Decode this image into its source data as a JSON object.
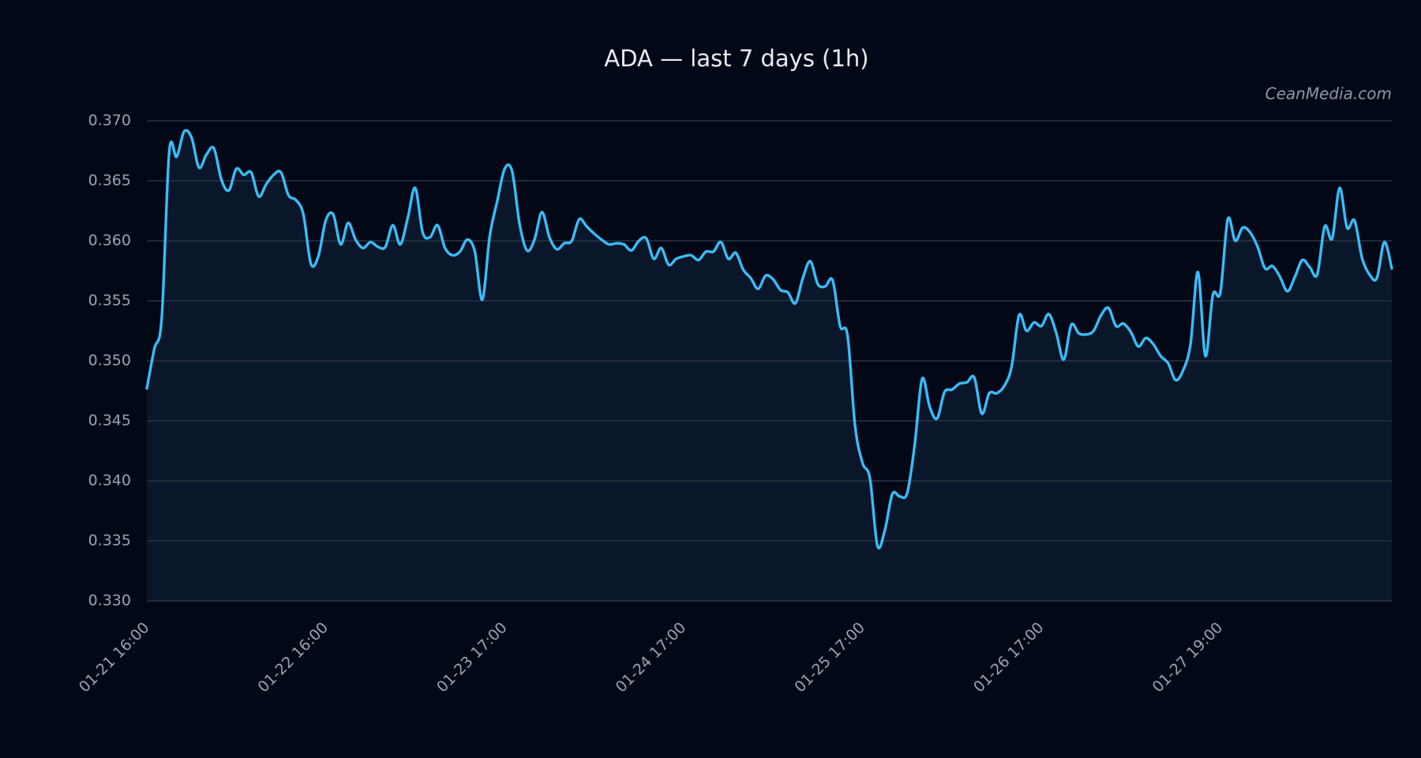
{
  "chart_data": {
    "type": "line",
    "title": "ADA — last 7 days (1h)",
    "annotation": "CeanMedia.com",
    "color": "#38bdf8",
    "fill_color": "#0a1629",
    "grid": true,
    "categories": [
      "01-21 16:00",
      null,
      null,
      null,
      null,
      null,
      null,
      null,
      null,
      null,
      null,
      null,
      null,
      null,
      null,
      null,
      null,
      null,
      null,
      null,
      null,
      null,
      null,
      null,
      "01-22 16:00",
      null,
      null,
      null,
      null,
      null,
      null,
      null,
      null,
      null,
      null,
      null,
      null,
      null,
      null,
      null,
      null,
      null,
      null,
      null,
      null,
      null,
      null,
      null,
      "01-23 17:00",
      null,
      null,
      null,
      null,
      null,
      null,
      null,
      null,
      null,
      null,
      null,
      null,
      null,
      null,
      null,
      null,
      null,
      null,
      null,
      null,
      null,
      null,
      null,
      "01-24 17:00",
      null,
      null,
      null,
      null,
      null,
      null,
      null,
      null,
      null,
      null,
      null,
      null,
      null,
      null,
      null,
      null,
      null,
      null,
      null,
      null,
      null,
      null,
      null,
      "01-25 17:00",
      null,
      null,
      null,
      null,
      null,
      null,
      null,
      null,
      null,
      null,
      null,
      null,
      null,
      null,
      null,
      null,
      null,
      null,
      null,
      null,
      null,
      null,
      null,
      "01-26 17:00",
      null,
      null,
      null,
      null,
      null,
      null,
      null,
      null,
      null,
      null,
      null,
      null,
      null,
      null,
      null,
      null,
      null,
      null,
      null,
      null,
      null,
      null,
      null,
      "01-27 19:00",
      null,
      null,
      null,
      null,
      null,
      null,
      null,
      null,
      null,
      null,
      null,
      null,
      null,
      null,
      null,
      null,
      null,
      null,
      null,
      null,
      null,
      null,
      null
    ],
    "values": [
      0.3477,
      0.351,
      0.3536,
      0.3674,
      0.367,
      0.3691,
      0.3686,
      0.3661,
      0.3672,
      0.3677,
      0.3651,
      0.3642,
      0.366,
      0.3655,
      0.3657,
      0.3637,
      0.3647,
      0.3655,
      0.3657,
      0.3638,
      0.3634,
      0.3622,
      0.3581,
      0.3587,
      0.3617,
      0.3622,
      0.3597,
      0.3615,
      0.3601,
      0.3594,
      0.3599,
      0.3595,
      0.3595,
      0.3613,
      0.3597,
      0.3619,
      0.3644,
      0.3607,
      0.3603,
      0.3613,
      0.3594,
      0.3588,
      0.3591,
      0.3601,
      0.3591,
      0.3551,
      0.3604,
      0.3633,
      0.366,
      0.3658,
      0.3614,
      0.3592,
      0.3601,
      0.3624,
      0.3603,
      0.3593,
      0.3598,
      0.36,
      0.3618,
      0.3612,
      0.3606,
      0.3601,
      0.3597,
      0.3598,
      0.3597,
      0.3592,
      0.36,
      0.3602,
      0.3585,
      0.3594,
      0.358,
      0.3585,
      0.3587,
      0.3588,
      0.3584,
      0.3591,
      0.3591,
      0.3599,
      0.3585,
      0.359,
      0.3576,
      0.3569,
      0.356,
      0.3571,
      0.3568,
      0.3559,
      0.3557,
      0.3548,
      0.3569,
      0.3583,
      0.3564,
      0.3562,
      0.3567,
      0.3529,
      0.3521,
      0.3446,
      0.3415,
      0.3402,
      0.3346,
      0.3359,
      0.3389,
      0.3387,
      0.339,
      0.343,
      0.3485,
      0.3462,
      0.3452,
      0.3474,
      0.3476,
      0.3481,
      0.3482,
      0.3486,
      0.3456,
      0.3473,
      0.3473,
      0.3479,
      0.3495,
      0.3538,
      0.3525,
      0.3532,
      0.3529,
      0.3539,
      0.3523,
      0.3501,
      0.353,
      0.3523,
      0.3522,
      0.3525,
      0.3538,
      0.3544,
      0.3529,
      0.3531,
      0.3524,
      0.3512,
      0.3519,
      0.3514,
      0.3504,
      0.3498,
      0.3484,
      0.3492,
      0.3514,
      0.3574,
      0.3504,
      0.3555,
      0.3557,
      0.3618,
      0.36,
      0.3611,
      0.3607,
      0.3595,
      0.3577,
      0.3579,
      0.357,
      0.3558,
      0.357,
      0.3584,
      0.3578,
      0.3572,
      0.3612,
      0.3602,
      0.3644,
      0.3611,
      0.3617,
      0.3586,
      0.3572,
      0.3569,
      0.3599,
      0.3577
    ],
    "ylim": [
      0.33,
      0.37
    ],
    "yticks": [
      {
        "value": 0.33,
        "label": "0.330"
      },
      {
        "value": 0.335,
        "label": "0.335"
      },
      {
        "value": 0.34,
        "label": "0.340"
      },
      {
        "value": 0.345,
        "label": "0.345"
      },
      {
        "value": 0.35,
        "label": "0.350"
      },
      {
        "value": 0.355,
        "label": "0.355"
      },
      {
        "value": 0.36,
        "label": "0.360"
      },
      {
        "value": 0.365,
        "label": "0.365"
      },
      {
        "value": 0.37,
        "label": "0.370"
      }
    ]
  }
}
